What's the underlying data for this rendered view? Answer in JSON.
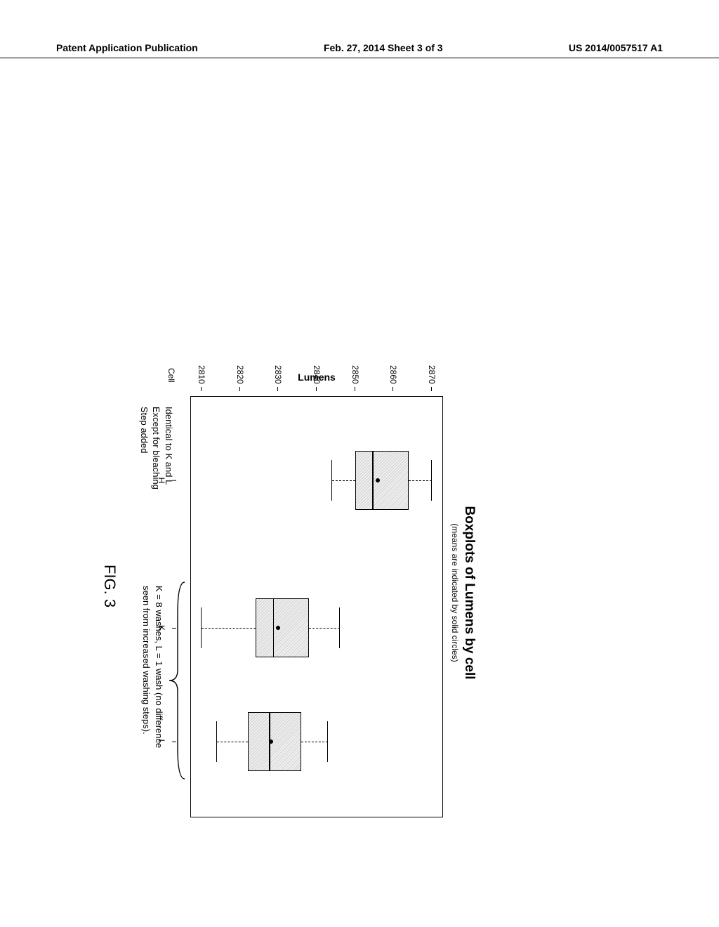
{
  "header": {
    "left": "Patent Application Publication",
    "center": "Feb. 27, 2014  Sheet 3 of 3",
    "right": "US 2014/0057517 A1"
  },
  "chart": {
    "type": "boxplot",
    "title": "Boxplots of Lumens by cell",
    "subtitle": "(means are indicated by solid circles)",
    "ylabel": "Lumens",
    "xlabel": "Cell",
    "ylim": [
      2807,
      2873
    ],
    "yticks": [
      2810,
      2820,
      2830,
      2840,
      2850,
      2860,
      2870
    ],
    "background_color": "#ffffff",
    "box_fill_pattern": "#d8d8d8",
    "border_color": "#000000",
    "title_fontsize": 19,
    "subtitle_fontsize": 12,
    "label_fontsize": 14,
    "tick_fontsize": 12,
    "box_width": 0.14,
    "categories": [
      "H",
      "K",
      "L"
    ],
    "box_x_positions_pct": [
      20,
      55,
      82
    ],
    "boxes": [
      {
        "q1": 2850,
        "q3": 2864,
        "median": 2855,
        "mean": 2856,
        "whisker_low": 2844,
        "whisker_high": 2870
      },
      {
        "q1": 2824,
        "q3": 2838,
        "median": 2829,
        "mean": 2830,
        "whisker_low": 2810,
        "whisker_high": 2846
      },
      {
        "q1": 2822,
        "q3": 2836,
        "median": 2828,
        "mean": 2828,
        "whisker_low": 2814,
        "whisker_high": 2843
      }
    ]
  },
  "annotations": {
    "left_lines": [
      "Identical to K and L",
      "Except for bleaching",
      "Step added"
    ],
    "right_lines": [
      "K = 8 washes, L = 1 wash (no difference",
      "seen from increased washing steps)."
    ]
  },
  "figure_label": "FIG. 3"
}
